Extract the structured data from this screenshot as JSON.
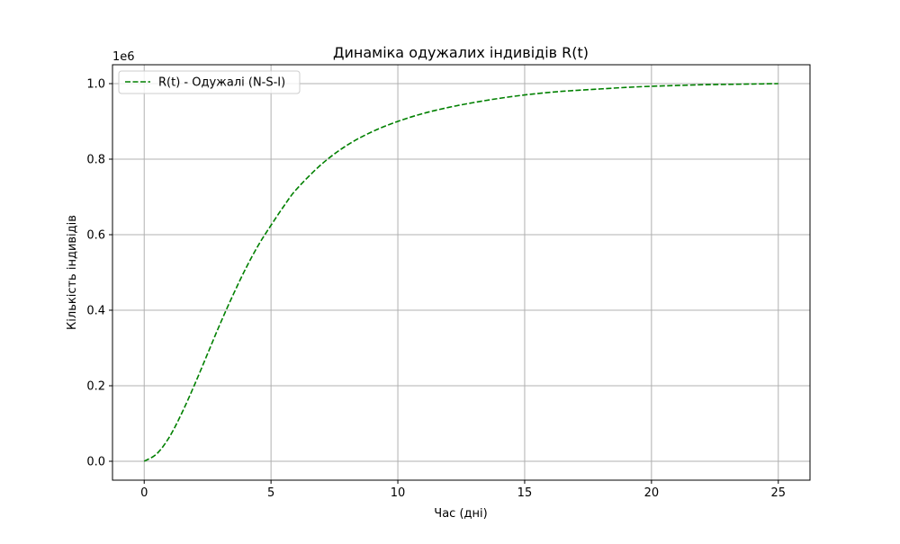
{
  "chart_data": {
    "type": "line",
    "title": "Динаміка одужалих індивідів R(t)",
    "xlabel": "Час (дні)",
    "ylabel": "Кількість індивідів",
    "y_offset_label": "1e6",
    "xlim": [
      -1.25,
      26.25
    ],
    "ylim": [
      -0.05,
      1.05
    ],
    "x_ticks": [
      0,
      5,
      10,
      15,
      20,
      25
    ],
    "x_tick_labels": [
      "0",
      "5",
      "10",
      "15",
      "20",
      "25"
    ],
    "y_ticks": [
      0.0,
      0.2,
      0.4,
      0.6,
      0.8,
      1.0
    ],
    "y_tick_labels": [
      "0.0",
      "0.2",
      "0.4",
      "0.6",
      "0.8",
      "1.0"
    ],
    "grid": true,
    "legend_position": "top-left",
    "series": [
      {
        "name": "R(t) - Одужалі (N-S-I)",
        "color": "#008000",
        "line_style": "dashed",
        "x": [
          0,
          0.5,
          1,
          1.5,
          2,
          2.5,
          3,
          3.5,
          4,
          4.5,
          5,
          5.5,
          6,
          7,
          8,
          9,
          10,
          11,
          12,
          13,
          14,
          15,
          16,
          17,
          18,
          19,
          20,
          21,
          22,
          23,
          24,
          25
        ],
        "y": [
          0.0,
          0.02,
          0.065,
          0.13,
          0.205,
          0.285,
          0.365,
          0.44,
          0.51,
          0.572,
          0.625,
          0.675,
          0.72,
          0.787,
          0.837,
          0.873,
          0.9,
          0.921,
          0.937,
          0.95,
          0.961,
          0.97,
          0.977,
          0.982,
          0.986,
          0.99,
          0.993,
          0.995,
          0.997,
          0.998,
          0.999,
          1.0
        ]
      }
    ]
  }
}
